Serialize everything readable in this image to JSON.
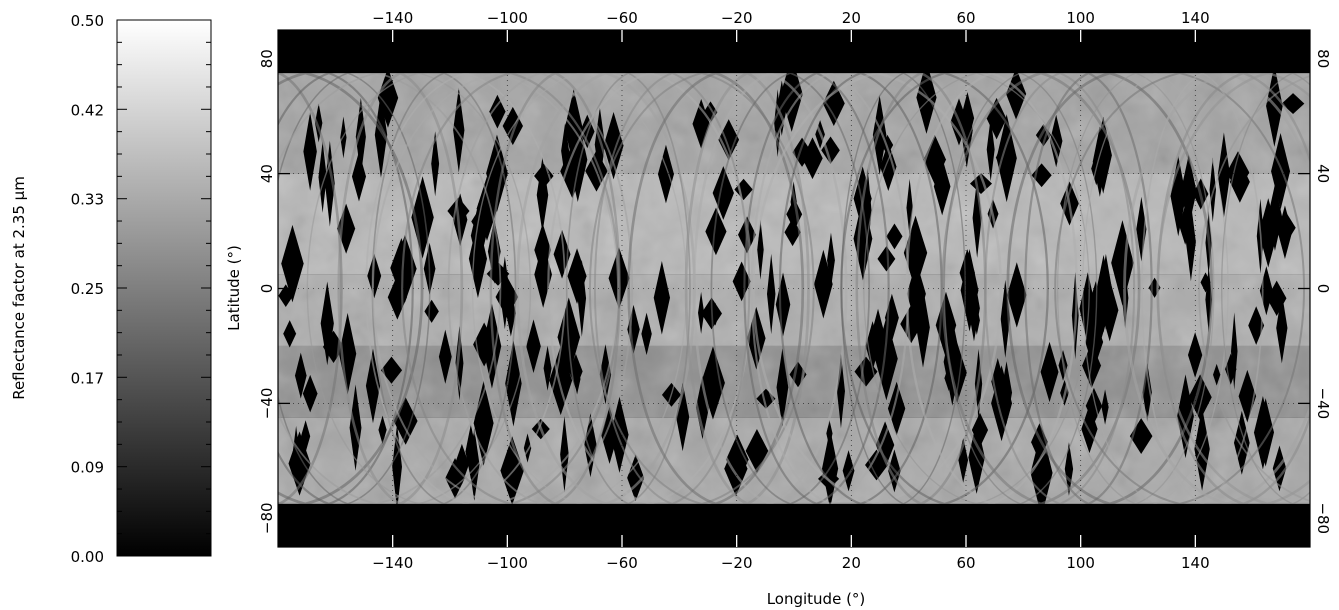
{
  "chart_data": [
    {
      "type": "heatmap",
      "role": "colorbar",
      "ylabel": "Reflectance factor at 2.35 μm",
      "ylim": [
        0,
        0.5
      ],
      "ticks": [
        "0.00",
        "0.09",
        "0.17",
        "0.25",
        "0.33",
        "0.42",
        "0.50"
      ],
      "tick_values": [
        0.0,
        0.0833,
        0.1667,
        0.25,
        0.3333,
        0.4167,
        0.5
      ],
      "colormap": [
        "#000000",
        "#ffffff"
      ]
    },
    {
      "type": "heatmap",
      "role": "map",
      "xlabel": "Longitude (°)",
      "ylabel": "Latitude (°)",
      "xlim": [
        -180,
        180
      ],
      "ylim": [
        -90,
        90
      ],
      "xticks": [
        "−140",
        "−100",
        "−60",
        "−20",
        "20",
        "60",
        "100",
        "140"
      ],
      "xtick_values": [
        -140,
        -100,
        -60,
        -20,
        20,
        60,
        100,
        140
      ],
      "yticks": [
        "−80",
        "−40",
        "0",
        "40",
        "80"
      ],
      "ytick_values": [
        -80,
        -40,
        0,
        40,
        80
      ],
      "grid": true,
      "coverage_lat_limits": [
        -75,
        75
      ],
      "no_data_color": "#000000",
      "regions": [
        {
          "lat": [
            40,
            75
          ],
          "reflectance": 0.32
        },
        {
          "lat": [
            5,
            40
          ],
          "reflectance": 0.36
        },
        {
          "lat": [
            -20,
            5
          ],
          "reflectance": 0.34
        },
        {
          "lat": [
            -45,
            -20
          ],
          "reflectance": 0.28
        },
        {
          "lat": [
            -75,
            -45
          ],
          "reflectance": 0.33
        }
      ]
    }
  ]
}
